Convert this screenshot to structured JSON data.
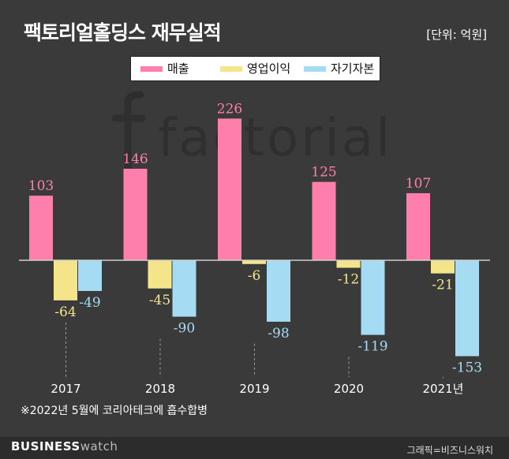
{
  "title": "팩토리얼홀딩스 재무실적",
  "unit": "[단위: 억원]",
  "note": "※2022년 5월에 코리아테크에 흡수합병",
  "watermark": "factorial",
  "brand": {
    "bold": "BUSINESS",
    "light": "watch"
  },
  "credit": "그래픽=비즈니스워치",
  "colors": {
    "background": "#3a3a3a",
    "sales": "#ff7fac",
    "operating_income": "#f5e58a",
    "equity": "#a6dcf3"
  },
  "chart_data": {
    "type": "bar",
    "title": "팩토리얼홀딩스 재무실적",
    "unit": "억원",
    "categories": [
      "2017",
      "2018",
      "2019",
      "2020",
      "2021년"
    ],
    "series": [
      {
        "name": "매출",
        "values": [
          103,
          146,
          226,
          125,
          107
        ],
        "value_labels": [
          "103",
          "146",
          "226",
          "125",
          "107"
        ]
      },
      {
        "name": "영업이익",
        "values": [
          -64,
          -45,
          -6,
          -12,
          -21
        ],
        "value_labels": [
          "-64",
          "-45",
          "-6",
          "-12",
          "-21"
        ]
      },
      {
        "name": "자기자본",
        "values": [
          -49,
          -90,
          -98,
          -119,
          -153
        ],
        "value_labels": [
          "-49",
          "-90",
          "-98",
          "-119",
          "-153"
        ]
      }
    ],
    "legend_position": "top-center",
    "grid": false
  }
}
